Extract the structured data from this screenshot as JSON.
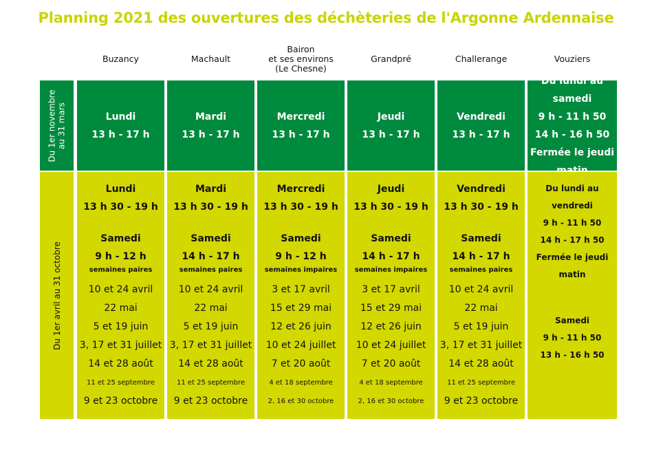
{
  "title": "Planning 2021 des ouvertures des déchèteries de l'Argonne Ardennaise",
  "columns": [
    {
      "name_lines": [
        "Buzancy"
      ]
    },
    {
      "name_lines": [
        "Machault"
      ]
    },
    {
      "name_lines": [
        "Bairon",
        "et ses environs",
        "(Le Chesne)"
      ]
    },
    {
      "name_lines": [
        "Grandpré"
      ]
    },
    {
      "name_lines": [
        "Challerange"
      ]
    },
    {
      "name_lines": [
        "Vouziers"
      ]
    }
  ],
  "rows": {
    "winter_label_lines": [
      "Du 1er novembre",
      "au 31 mars"
    ],
    "summer_label": "Du 1er avril au 31 octobre"
  },
  "winter": [
    {
      "day": "Lundi",
      "hours": "13 h - 17 h"
    },
    {
      "day": "Mardi",
      "hours": "13 h - 17 h"
    },
    {
      "day": "Mercredi",
      "hours": "13 h - 17 h"
    },
    {
      "day": "Jeudi",
      "hours": "13 h - 17 h"
    },
    {
      "day": "Vendredi",
      "hours": "13 h - 17 h"
    }
  ],
  "summer": [
    {
      "day": "Lundi",
      "hours": "13 h 30 - 19 h",
      "sat_label": "Samedi",
      "sat_hours": "9 h - 12 h",
      "weeks": "semaines paires",
      "dates": [
        "10 et 24 avril",
        "22 mai",
        "5 et 19 juin",
        "3, 17 et 31 juillet",
        "14 et 28 août",
        "11 et 25 septembre",
        "9 et 23 octobre"
      ]
    },
    {
      "day": "Mardi",
      "hours": "13 h 30 - 19 h",
      "sat_label": "Samedi",
      "sat_hours": "14 h - 17 h",
      "weeks": "semaines paires",
      "dates": [
        "10 et 24 avril",
        "22 mai",
        "5 et 19 juin",
        "3, 17 et 31 juillet",
        "14 et 28 août",
        "11 et 25 septembre",
        "9 et 23 octobre"
      ]
    },
    {
      "day": "Mercredi",
      "hours": "13 h 30 - 19 h",
      "sat_label": "Samedi",
      "sat_hours": "9 h - 12 h",
      "weeks": "semaines impaires",
      "dates": [
        "3 et 17 avril",
        "15 et 29 mai",
        "12 et 26 juin",
        "10 et 24 juillet",
        "7 et 20 août",
        "4 et 18 septembre",
        "2, 16 et 30 octobre"
      ]
    },
    {
      "day": "Jeudi",
      "hours": "13 h 30 - 19 h",
      "sat_label": "Samedi",
      "sat_hours": "14 h - 17 h",
      "weeks": "semaines impaires",
      "dates": [
        "3 et 17 avril",
        "15 et 29 mai",
        "12 et 26 juin",
        "10 et 24 juillet",
        "7 et 20 août",
        "4 et 18 septembre",
        "2, 16 et 30 octobre"
      ]
    },
    {
      "day": "Vendredi",
      "hours": "13 h 30 - 19 h",
      "sat_label": "Samedi",
      "sat_hours": "14 h - 17 h",
      "weeks": "semaines paires",
      "dates": [
        "10 et 24 avril",
        "22 mai",
        "5 et 19 juin",
        "3, 17 et 31 juillet",
        "14 et 28 août",
        "11 et 25 septembre",
        "9 et 23 octobre"
      ]
    }
  ],
  "vouziers": {
    "winter_lines": [
      "Du lundi au samedi",
      "9 h - 11 h 50",
      "14 h - 16 h 50",
      "Fermée le jeudi",
      "matin"
    ],
    "summer_lines_a": [
      "Du lundi au",
      "vendredi",
      "9 h - 11 h 50",
      "14 h - 17 h 50",
      "Fermée le jeudi",
      "matin"
    ],
    "summer_lines_b": [
      "Samedi",
      "9 h - 11 h 50",
      "13 h - 16 h 50"
    ]
  },
  "colors": {
    "title": "#c9d400",
    "green": "#008a3e",
    "yellow": "#d3d800"
  }
}
